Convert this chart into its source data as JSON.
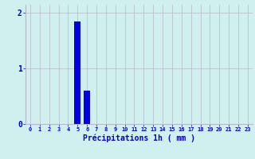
{
  "xlabel": "Précipitations 1h ( mm )",
  "hours": [
    0,
    1,
    2,
    3,
    4,
    5,
    6,
    7,
    8,
    9,
    10,
    11,
    12,
    13,
    14,
    15,
    16,
    17,
    18,
    19,
    20,
    21,
    22,
    23
  ],
  "values": [
    0,
    0,
    0,
    0,
    0,
    1.85,
    0.6,
    0,
    0,
    0,
    0,
    0,
    0,
    0,
    0,
    0,
    0,
    0,
    0,
    0,
    0,
    0,
    0,
    0
  ],
  "bar_color": "#0000dd",
  "background_color": "#d0f0f0",
  "grid_color": "#b8b8c8",
  "axis_color": "#0000cc",
  "tick_color": "#0000cc",
  "ylim": [
    0,
    2.15
  ],
  "yticks": [
    0,
    1,
    2
  ],
  "xlim": [
    -0.5,
    23.5
  ]
}
